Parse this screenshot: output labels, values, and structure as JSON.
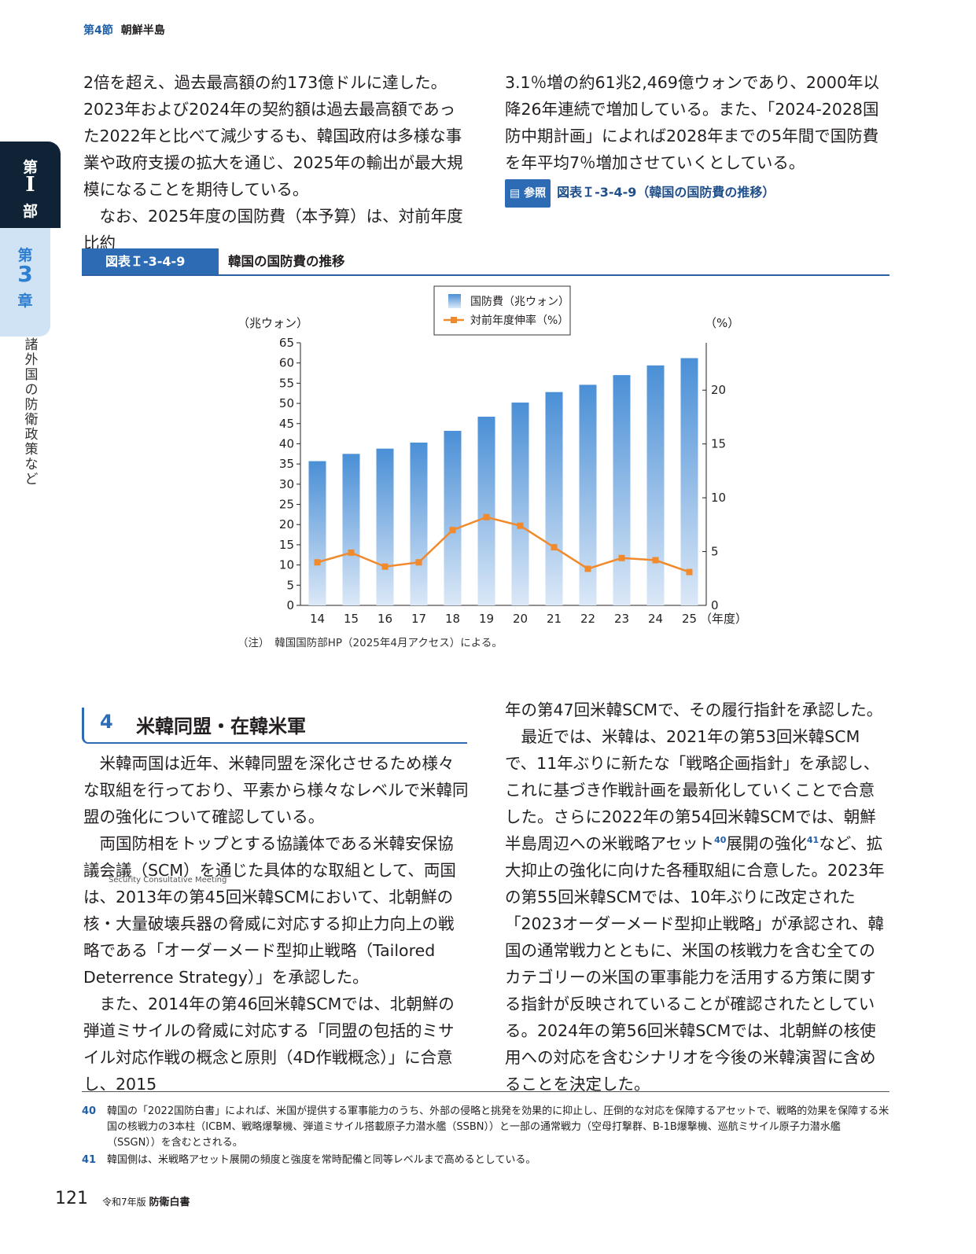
{
  "header": {
    "section": "第4節",
    "title": "朝鮮半島"
  },
  "side_tab": {
    "part_1": "第",
    "part_2": "I",
    "part_3": "部",
    "chapter_1": "第",
    "chapter_2": "3",
    "chapter_3": "章",
    "title": "諸外国の防衛政策など"
  },
  "top_left": {
    "p1": "2倍を超え、過去最高額の約173億ドルに達した。2023年および2024年の契約額は過去最高額であった2022年と比べて減少するも、韓国政府は多様な事業や政府支援の拡大を通じ、2025年の輸出が最大規模になることを期待している。",
    "p2": "なお、2025年度の国防費（本予算）は、対前年度比約"
  },
  "top_right": {
    "p1": "3.1％増の約61兆2,469億ウォンであり、2000年以降26年連続で増加している。また、「2024-2028国防中期計画」によれば2028年までの5年間で国防費を年平均7％増加させていくとしている。",
    "ref_badge": "参照",
    "ref_text": "図表Ｉ-3-4-9（韓国の国防費の推移）"
  },
  "figure": {
    "label": "図表Ｉ-3-4-9",
    "title": "韓国の国防費の推移",
    "note": "（注）　韓国国防部HP（2025年4月アクセス）による。"
  },
  "chart_data": {
    "type": "bar",
    "categories": [
      "14",
      "15",
      "16",
      "17",
      "18",
      "19",
      "20",
      "21",
      "22",
      "23",
      "24",
      "25"
    ],
    "xlabel": "（年度）",
    "ylabel": "（兆ウォン）",
    "y2label": "（%）",
    "ylim": [
      0,
      65
    ],
    "y2lim": [
      0,
      24.4
    ],
    "yticks": [
      0,
      5,
      10,
      15,
      20,
      25,
      30,
      35,
      40,
      45,
      50,
      55,
      60,
      65
    ],
    "y2ticks": [
      0,
      5,
      10,
      15,
      20
    ],
    "legend_position": "top-center",
    "series": [
      {
        "name": "国防費（兆ウォン）",
        "type": "bar",
        "axis": "left",
        "color": "#4a8fd6",
        "values": [
          35.7,
          37.5,
          38.8,
          40.3,
          43.2,
          46.7,
          50.2,
          52.8,
          54.6,
          57.0,
          59.4,
          61.2
        ]
      },
      {
        "name": "対前年度伸率（%）",
        "type": "line",
        "axis": "right",
        "color": "#f08a2c",
        "values": [
          4.0,
          4.9,
          3.6,
          4.0,
          7.0,
          8.2,
          7.4,
          5.4,
          3.4,
          4.4,
          4.2,
          3.1
        ]
      }
    ]
  },
  "section4": {
    "number": "4",
    "title": "米韓同盟・在韓米軍"
  },
  "bottom_left": {
    "p1": "米韓両国は近年、米韓同盟を深化させるため様々な取組を行っており、平素から様々なレベルで米韓同盟の強化について確認している。",
    "p2": "両国防相をトップとする協議体である米韓安保協議会議（SCM）を通じた具体的な取組として、両国は、2013年の第45回米韓SCMにおいて、北朝鮮の核・大量破壊兵器の脅威に対応する抑止力向上の戦略である「オーダーメード型抑止戦略（Tailored Deterrence Strategy）」を承認した。",
    "ruby": "Security Consultative Meeting",
    "p3": "また、2014年の第46回米韓SCMでは、北朝鮮の弾道ミサイルの脅威に対応する「同盟の包括的ミサイル対応作戦の概念と原則（4D作戦概念）」に合意し、2015"
  },
  "bottom_right": {
    "p1": "年の第47回米韓SCMで、その履行指針を承認した。",
    "p2a": "最近では、米韓は、2021年の第53回米韓SCMで、11年ぶりに新たな「戦略企画指針」を承認し、これに基づき作戦計画を最新化していくことで合意した。さらに2022年の第54回米韓SCMでは、朝鮮半島周辺への米戦略アセット",
    "sup1": "40",
    "p2b": "展開の強化",
    "sup2": "41",
    "p2c": "など、拡大抑止の強化に向けた各種取組に合意した。2023年の第55回米韓SCMでは、10年ぶりに改定された「2023オーダーメード型抑止戦略」が承認され、韓国の通常戦力とともに、米国の核戦力を含む全てのカテゴリーの米国の軍事能力を活用する方策に関する指針が反映されていることが確認されたとしている。2024年の第56回米韓SCMでは、北朝鮮の核使用への対応を含むシナリオを今後の米韓演習に含めることを決定した。"
  },
  "footnotes": [
    {
      "num": "40",
      "text": "韓国の「2022国防白書」によれば、米国が提供する軍事能力のうち、外部の侵略と挑発を効果的に抑止し、圧倒的な対応を保障するアセットで、戦略的効果を保障する米国の核戦力の3本柱（ICBM、戦略爆撃機、弾道ミサイル搭載原子力潜水艦（SSBN））と一部の通常戦力（空母打撃群、B-1B爆撃機、巡航ミサイル原子力潜水艦（SSGN））を含むとされる。"
    },
    {
      "num": "41",
      "text": "韓国側は、米戦略アセット展開の頻度と強度を常時配備と同等レベルまで高めるとしている。"
    }
  ],
  "page": {
    "number": "121",
    "edition": "令和7年版",
    "book": "防衛白書"
  }
}
